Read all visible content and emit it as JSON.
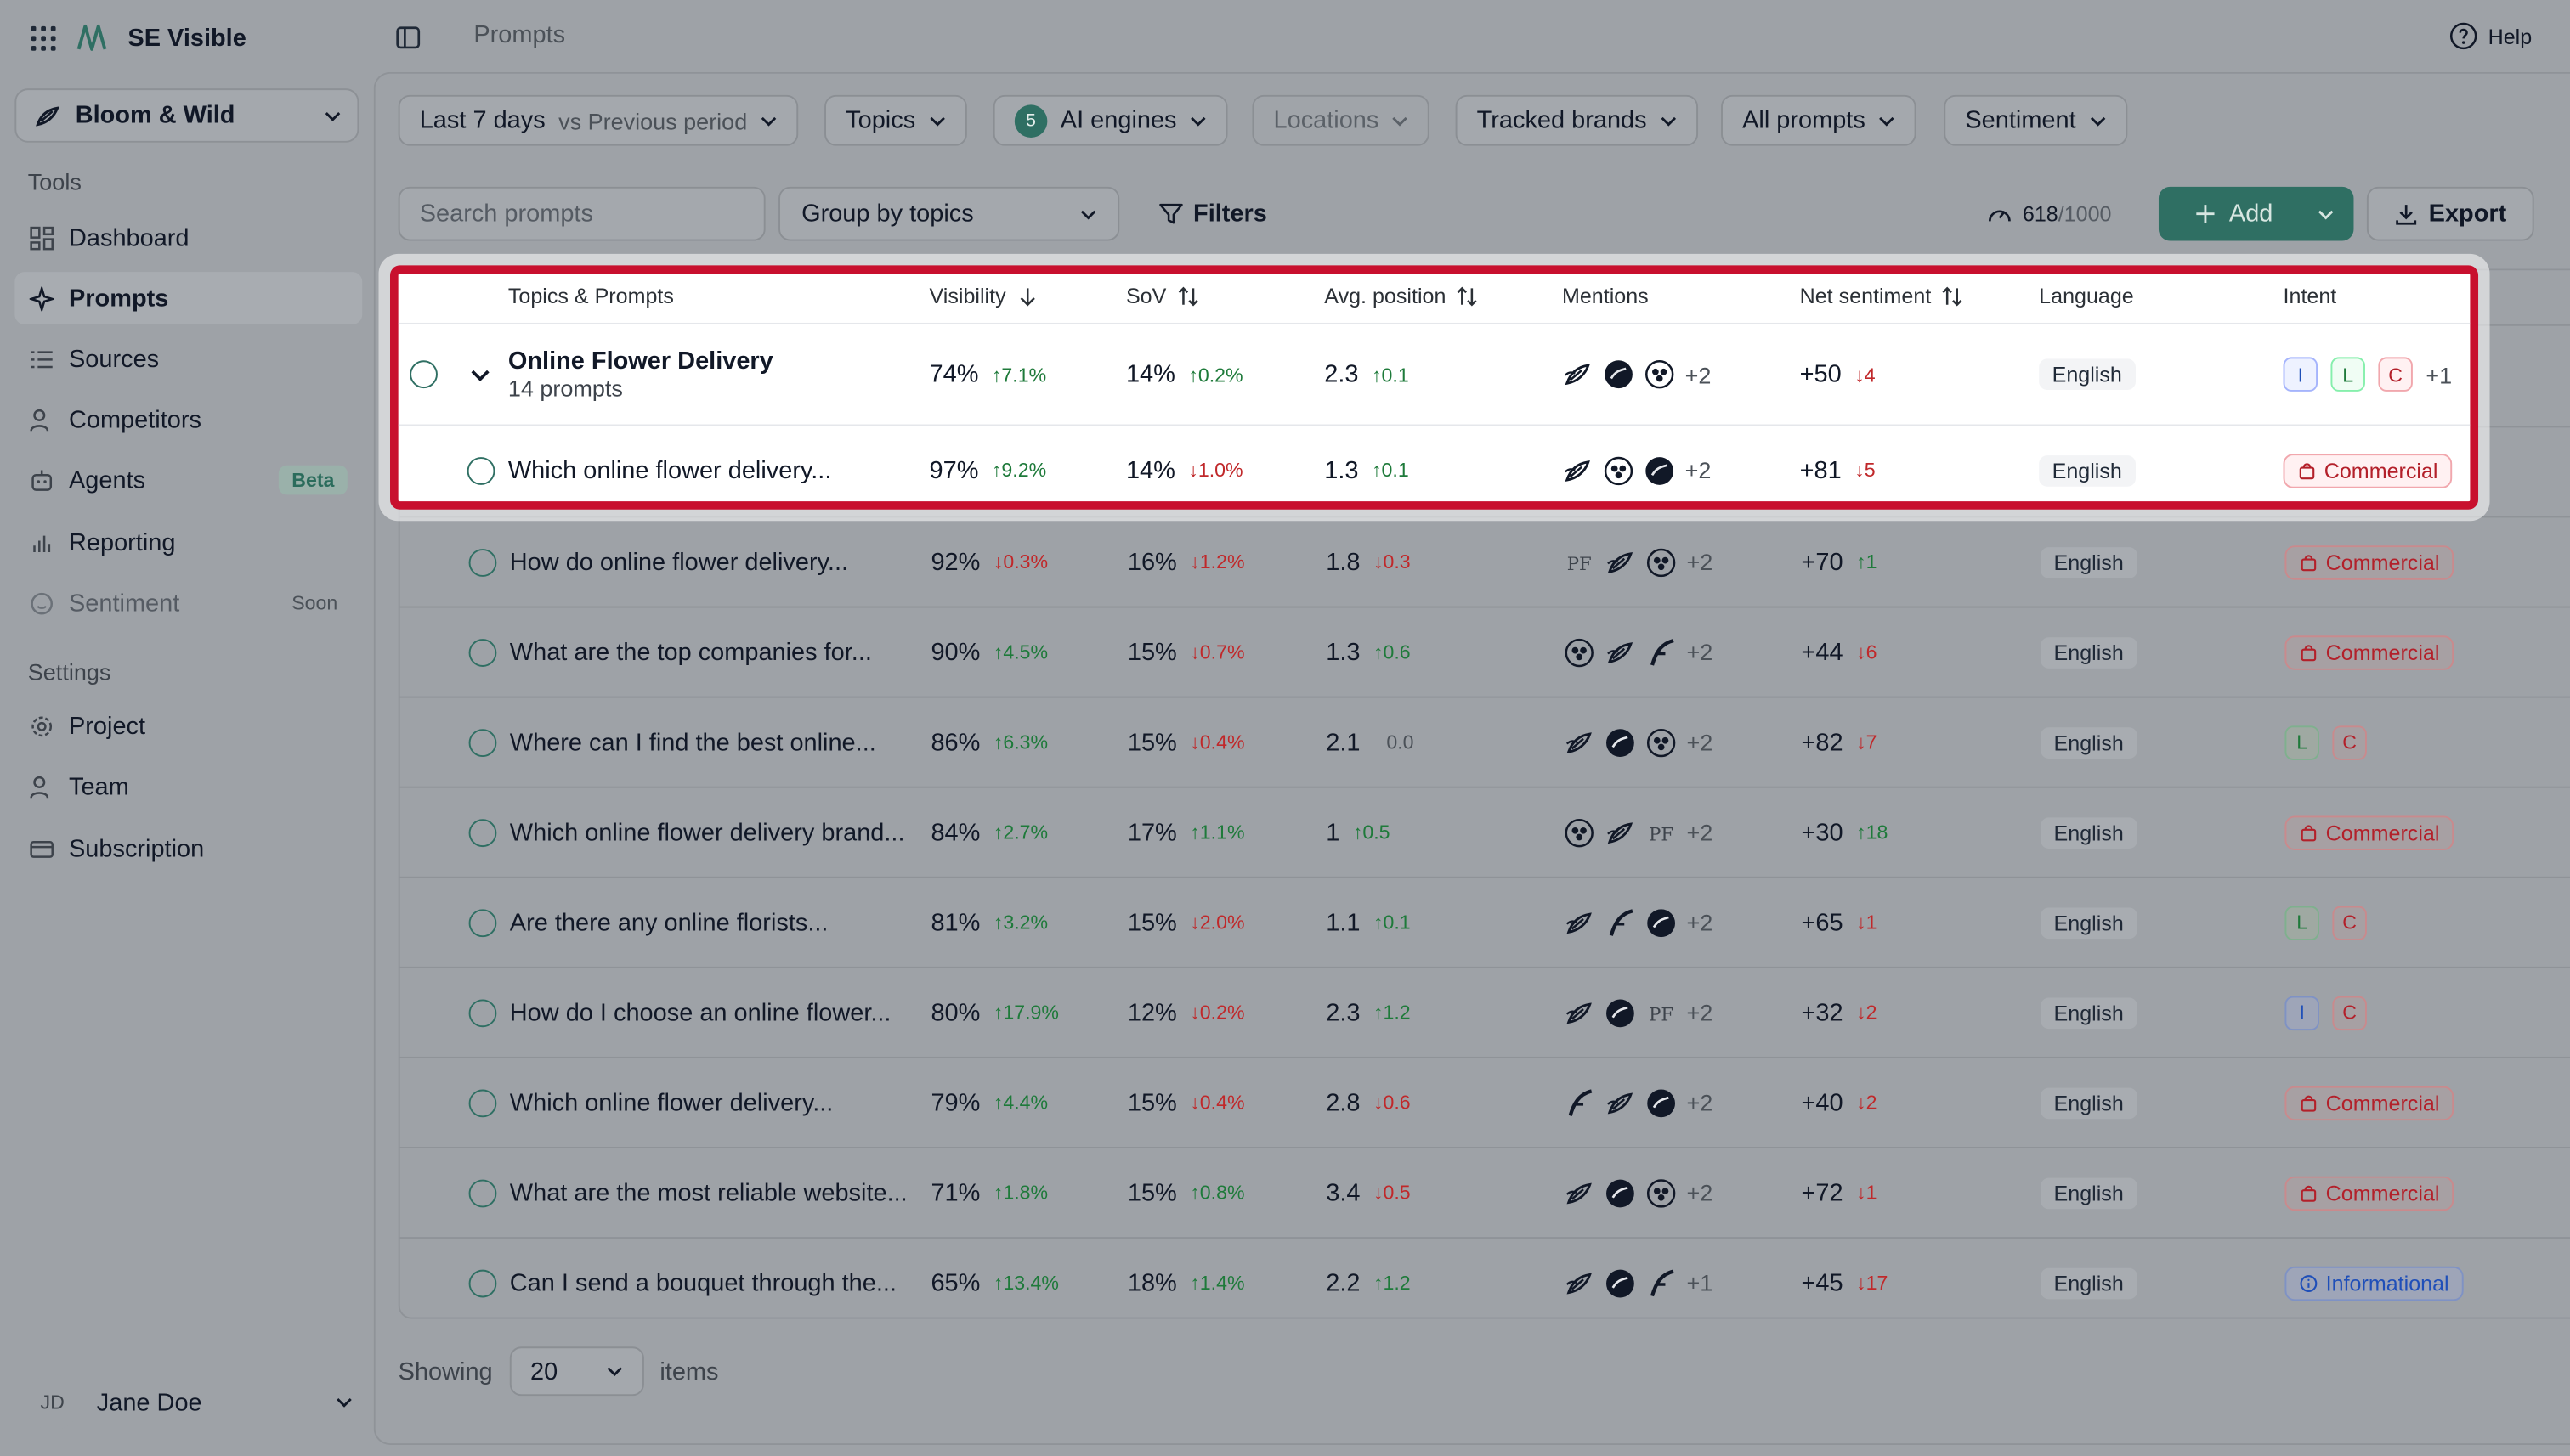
{
  "app": {
    "name": "SE Visible"
  },
  "workspace": {
    "name": "Bloom & Wild"
  },
  "sidebar": {
    "tools_label": "Tools",
    "settings_label": "Settings",
    "items": [
      {
        "label": "Dashboard",
        "icon": "dashboard-icon"
      },
      {
        "label": "Prompts",
        "icon": "sparkle-icon"
      },
      {
        "label": "Sources",
        "icon": "list-icon"
      },
      {
        "label": "Competitors",
        "icon": "users-icon"
      },
      {
        "label": "Agents",
        "icon": "bot-icon",
        "badge": "Beta"
      },
      {
        "label": "Reporting",
        "icon": "bar-chart-icon"
      },
      {
        "label": "Sentiment",
        "icon": "smile-icon",
        "badge": "Soon"
      }
    ],
    "settings_items": [
      {
        "label": "Project",
        "icon": "gear-icon"
      },
      {
        "label": "Team",
        "icon": "team-icon"
      },
      {
        "label": "Subscription",
        "icon": "card-icon"
      }
    ],
    "user": {
      "initials": "JD",
      "name": "Jane Doe"
    }
  },
  "header": {
    "page_title": "Prompts",
    "help_label": "Help"
  },
  "filters": {
    "period": "Last 7 days",
    "period_compare": "vs Previous period",
    "topics": "Topics",
    "engines_count": "5",
    "engines": "AI engines",
    "locations": "Locations",
    "brands": "Tracked brands",
    "prompts": "All prompts",
    "sentiment": "Sentiment"
  },
  "toolbar": {
    "search_placeholder": "Search prompts",
    "group_by": "Group by topics",
    "filters_label": "Filters",
    "quota_used": "618",
    "quota_max": "/1000",
    "add_label": "Add",
    "export_label": "Export"
  },
  "table": {
    "headers": {
      "topics": "Topics & Prompts",
      "visibility": "Visibility",
      "sov": "SoV",
      "avg_position": "Avg. position",
      "mentions": "Mentions",
      "net_sentiment": "Net sentiment",
      "language": "Language",
      "intent": "Intent"
    },
    "topic": {
      "title": "Online Flower Delivery",
      "subtitle": "14 prompts",
      "visibility": "74%",
      "visibility_delta": "↑7.1%",
      "sov": "14%",
      "sov_delta": "↑0.2%",
      "position": "2.3",
      "position_delta": "↑0.1",
      "mentions_more": "+2",
      "sentiment": "+50",
      "sentiment_delta": "↓4",
      "language": "English",
      "intent_pills": [
        "I",
        "L",
        "C"
      ],
      "intent_more": "+1"
    },
    "rows": [
      {
        "prompt": "Which online flower delivery...",
        "visibility": "97%",
        "visibility_delta": "↑9.2%",
        "vis_dir": "up",
        "sov": "14%",
        "sov_delta": "↓1.0%",
        "sov_dir": "down",
        "position": "1.3",
        "position_delta": "↑0.1",
        "pos_dir": "up",
        "mentions": [
          "bloom",
          "peach",
          "ff"
        ],
        "mentions_more": "+2",
        "sentiment": "+81",
        "sentiment_delta": "↓5",
        "sent_dir": "down",
        "language": "English",
        "intent": "Commercial"
      },
      {
        "prompt": "How do online flower delivery...",
        "visibility": "92%",
        "visibility_delta": "↓0.3%",
        "vis_dir": "down",
        "sov": "16%",
        "sov_delta": "↓1.2%",
        "sov_dir": "down",
        "position": "1.8",
        "position_delta": "↓0.3",
        "pos_dir": "down",
        "mentions": [
          "pf",
          "bloom",
          "peach"
        ],
        "mentions_more": "+2",
        "sentiment": "+70",
        "sentiment_delta": "↑1",
        "sent_dir": "up",
        "language": "English",
        "intent": "Commercial"
      },
      {
        "prompt": "What are the top companies for...",
        "visibility": "90%",
        "visibility_delta": "↑4.5%",
        "vis_dir": "up",
        "sov": "15%",
        "sov_delta": "↓0.7%",
        "sov_dir": "down",
        "position": "1.3",
        "position_delta": "↑0.6",
        "pos_dir": "up",
        "mentions": [
          "peach",
          "bloom",
          "flora"
        ],
        "mentions_more": "+2",
        "sentiment": "+44",
        "sentiment_delta": "↓6",
        "sent_dir": "down",
        "language": "English",
        "intent": "Commercial"
      },
      {
        "prompt": "Where can I find the best online...",
        "visibility": "86%",
        "visibility_delta": "↑6.3%",
        "vis_dir": "up",
        "sov": "15%",
        "sov_delta": "↓0.4%",
        "sov_dir": "down",
        "position": "2.1",
        "position_delta": "0.0",
        "pos_dir": "neutral",
        "mentions": [
          "bloom",
          "ff",
          "peach"
        ],
        "mentions_more": "+2",
        "sentiment": "+82",
        "sentiment_delta": "↓7",
        "sent_dir": "down",
        "language": "English",
        "intent_pills": [
          "L",
          "C"
        ]
      },
      {
        "prompt": "Which online flower delivery brand...",
        "visibility": "84%",
        "visibility_delta": "↑2.7%",
        "vis_dir": "up",
        "sov": "17%",
        "sov_delta": "↑1.1%",
        "sov_dir": "up",
        "position": "1",
        "position_delta": "↑0.5",
        "pos_dir": "up",
        "mentions": [
          "peach",
          "bloom",
          "pf"
        ],
        "mentions_more": "+2",
        "sentiment": "+30",
        "sentiment_delta": "↑18",
        "sent_dir": "up",
        "language": "English",
        "intent": "Commercial"
      },
      {
        "prompt": "Are there any online florists...",
        "visibility": "81%",
        "visibility_delta": "↑3.2%",
        "vis_dir": "up",
        "sov": "15%",
        "sov_delta": "↓2.0%",
        "sov_dir": "down",
        "position": "1.1",
        "position_delta": "↑0.1",
        "pos_dir": "up",
        "mentions": [
          "bloom",
          "flora",
          "ff"
        ],
        "mentions_more": "+2",
        "sentiment": "+65",
        "sentiment_delta": "↓1",
        "sent_dir": "down",
        "language": "English",
        "intent_pills": [
          "L",
          "C"
        ]
      },
      {
        "prompt": "How do I choose an online flower...",
        "visibility": "80%",
        "visibility_delta": "↑17.9%",
        "vis_dir": "up",
        "sov": "12%",
        "sov_delta": "↓0.2%",
        "sov_dir": "down",
        "position": "2.3",
        "position_delta": "↑1.2",
        "pos_dir": "up",
        "mentions": [
          "bloom",
          "ff",
          "pf"
        ],
        "mentions_more": "+2",
        "sentiment": "+32",
        "sentiment_delta": "↓2",
        "sent_dir": "down",
        "language": "English",
        "intent_pills": [
          "I",
          "C"
        ]
      },
      {
        "prompt": "Which online flower delivery...",
        "visibility": "79%",
        "visibility_delta": "↑4.4%",
        "vis_dir": "up",
        "sov": "15%",
        "sov_delta": "↓0.4%",
        "sov_dir": "down",
        "position": "2.8",
        "position_delta": "↓0.6",
        "pos_dir": "down",
        "mentions": [
          "flora",
          "bloom",
          "ff"
        ],
        "mentions_more": "+2",
        "sentiment": "+40",
        "sentiment_delta": "↓2",
        "sent_dir": "down",
        "language": "English",
        "intent": "Commercial"
      },
      {
        "prompt": "What are the most reliable website...",
        "visibility": "71%",
        "visibility_delta": "↑1.8%",
        "vis_dir": "up",
        "sov": "15%",
        "sov_delta": "↑0.8%",
        "sov_dir": "up",
        "position": "3.4",
        "position_delta": "↓0.5",
        "pos_dir": "down",
        "mentions": [
          "bloom",
          "ff",
          "peach"
        ],
        "mentions_more": "+2",
        "sentiment": "+72",
        "sentiment_delta": "↓1",
        "sent_dir": "down",
        "language": "English",
        "intent": "Commercial"
      },
      {
        "prompt": "Can I send a bouquet through the...",
        "visibility": "65%",
        "visibility_delta": "↑13.4%",
        "vis_dir": "up",
        "sov": "18%",
        "sov_delta": "↑1.4%",
        "sov_dir": "up",
        "position": "2.2",
        "position_delta": "↑1.2",
        "pos_dir": "up",
        "mentions": [
          "bloom",
          "ff",
          "flora"
        ],
        "mentions_more": "+1",
        "sentiment": "+45",
        "sentiment_delta": "↓17",
        "sent_dir": "down",
        "language": "English",
        "intent": "Informational"
      }
    ]
  },
  "footer": {
    "showing_label": "Showing",
    "page_size": "20",
    "items_label": "items"
  },
  "colors": {
    "accent": "#2f6f63",
    "highlight": "#c8102e",
    "up": "#1e7a3a",
    "down": "#c0282a"
  }
}
